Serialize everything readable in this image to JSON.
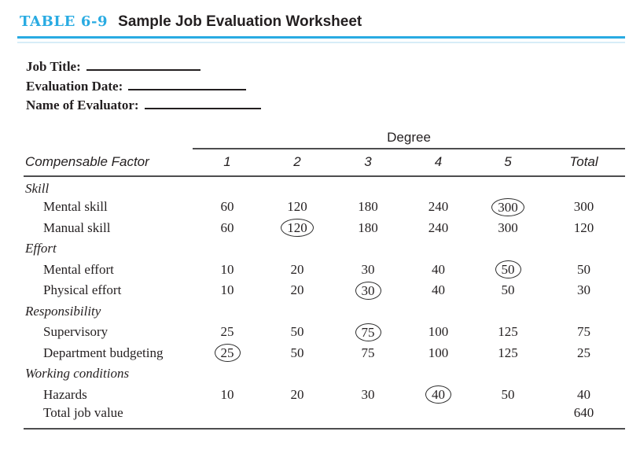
{
  "title": {
    "label": "TABLE 6-9",
    "text": "Sample Job Evaluation Worksheet"
  },
  "form_fields": [
    {
      "label": "Job Title:"
    },
    {
      "label": "Evaluation Date:"
    },
    {
      "label": "Name of Evaluator:"
    }
  ],
  "table": {
    "degree_header": "Degree",
    "columns": [
      "Compensable Factor",
      "1",
      "2",
      "3",
      "4",
      "5",
      "Total"
    ],
    "sections": [
      {
        "name": "Skill",
        "rows": [
          {
            "factor": "Mental skill",
            "values": [
              "60",
              "120",
              "180",
              "240",
              "300"
            ],
            "circled_index": 4,
            "total": "300"
          },
          {
            "factor": "Manual skill",
            "values": [
              "60",
              "120",
              "180",
              "240",
              "300"
            ],
            "circled_index": 1,
            "total": "120"
          }
        ]
      },
      {
        "name": "Effort",
        "rows": [
          {
            "factor": "Mental effort",
            "values": [
              "10",
              "20",
              "30",
              "40",
              "50"
            ],
            "circled_index": 4,
            "total": "50"
          },
          {
            "factor": "Physical effort",
            "values": [
              "10",
              "20",
              "30",
              "40",
              "50"
            ],
            "circled_index": 2,
            "total": "30"
          }
        ]
      },
      {
        "name": "Responsibility",
        "rows": [
          {
            "factor": "Supervisory",
            "values": [
              "25",
              "50",
              "75",
              "100",
              "125"
            ],
            "circled_index": 2,
            "total": "75"
          },
          {
            "factor": "Department budgeting",
            "values": [
              "25",
              "50",
              "75",
              "100",
              "125"
            ],
            "circled_index": 0,
            "total": "25"
          }
        ]
      },
      {
        "name": "Working conditions",
        "rows": [
          {
            "factor": "Hazards",
            "values": [
              "10",
              "20",
              "30",
              "40",
              "50"
            ],
            "circled_index": 3,
            "total": "40"
          }
        ]
      }
    ],
    "total_row": {
      "label": "Total job value",
      "total": "640"
    }
  },
  "colors": {
    "accent": "#29abe2",
    "text": "#231f20",
    "rule": "#4d4d4f",
    "faint_rule": "#d7edf8"
  }
}
